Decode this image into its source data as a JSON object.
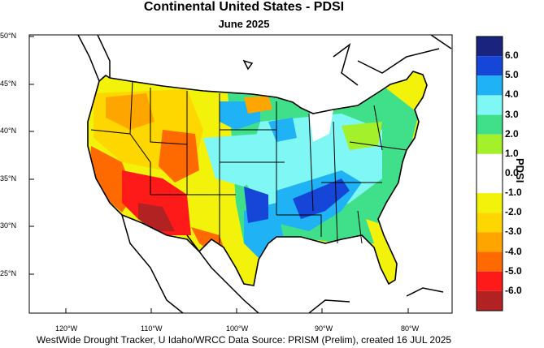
{
  "title": "Continental United States - PDSI",
  "subtitle": "June 2025",
  "footer": "WestWide Drought Tracker, U Idaho/WRCC Data Source: PRISM (Prelim), created 16 JUL 2025",
  "colorbar": {
    "title": "PDSI",
    "entries": [
      {
        "label": "6.0",
        "color": "#1a237e"
      },
      {
        "label": "5.0",
        "color": "#1646d8"
      },
      {
        "label": "4.0",
        "color": "#1fb2f5"
      },
      {
        "label": "3.0",
        "color": "#7ff7f5"
      },
      {
        "label": "2.0",
        "color": "#40e08a"
      },
      {
        "label": "1.0",
        "color": "#a4f02b"
      },
      {
        "label": "0.0",
        "color": "#ffffff"
      },
      {
        "label": "-1.0",
        "color": "#ffffff"
      },
      {
        "label": "-2.0",
        "color": "#f2f20a"
      },
      {
        "label": "-3.0",
        "color": "#ffd700"
      },
      {
        "label": "-4.0",
        "color": "#ffa500"
      },
      {
        "label": "-5.0",
        "color": "#ff6a00"
      },
      {
        "label": "-6.0",
        "color": "#ff1a1a"
      },
      {
        "label": "",
        "color": "#b22222"
      }
    ]
  },
  "lat_labels": [
    "50°N",
    "45°N",
    "40°N",
    "35°N",
    "30°N",
    "25°N"
  ],
  "lon_labels": [
    "120°W",
    "110°W",
    "100°W",
    "90°W",
    "80°W"
  ]
}
